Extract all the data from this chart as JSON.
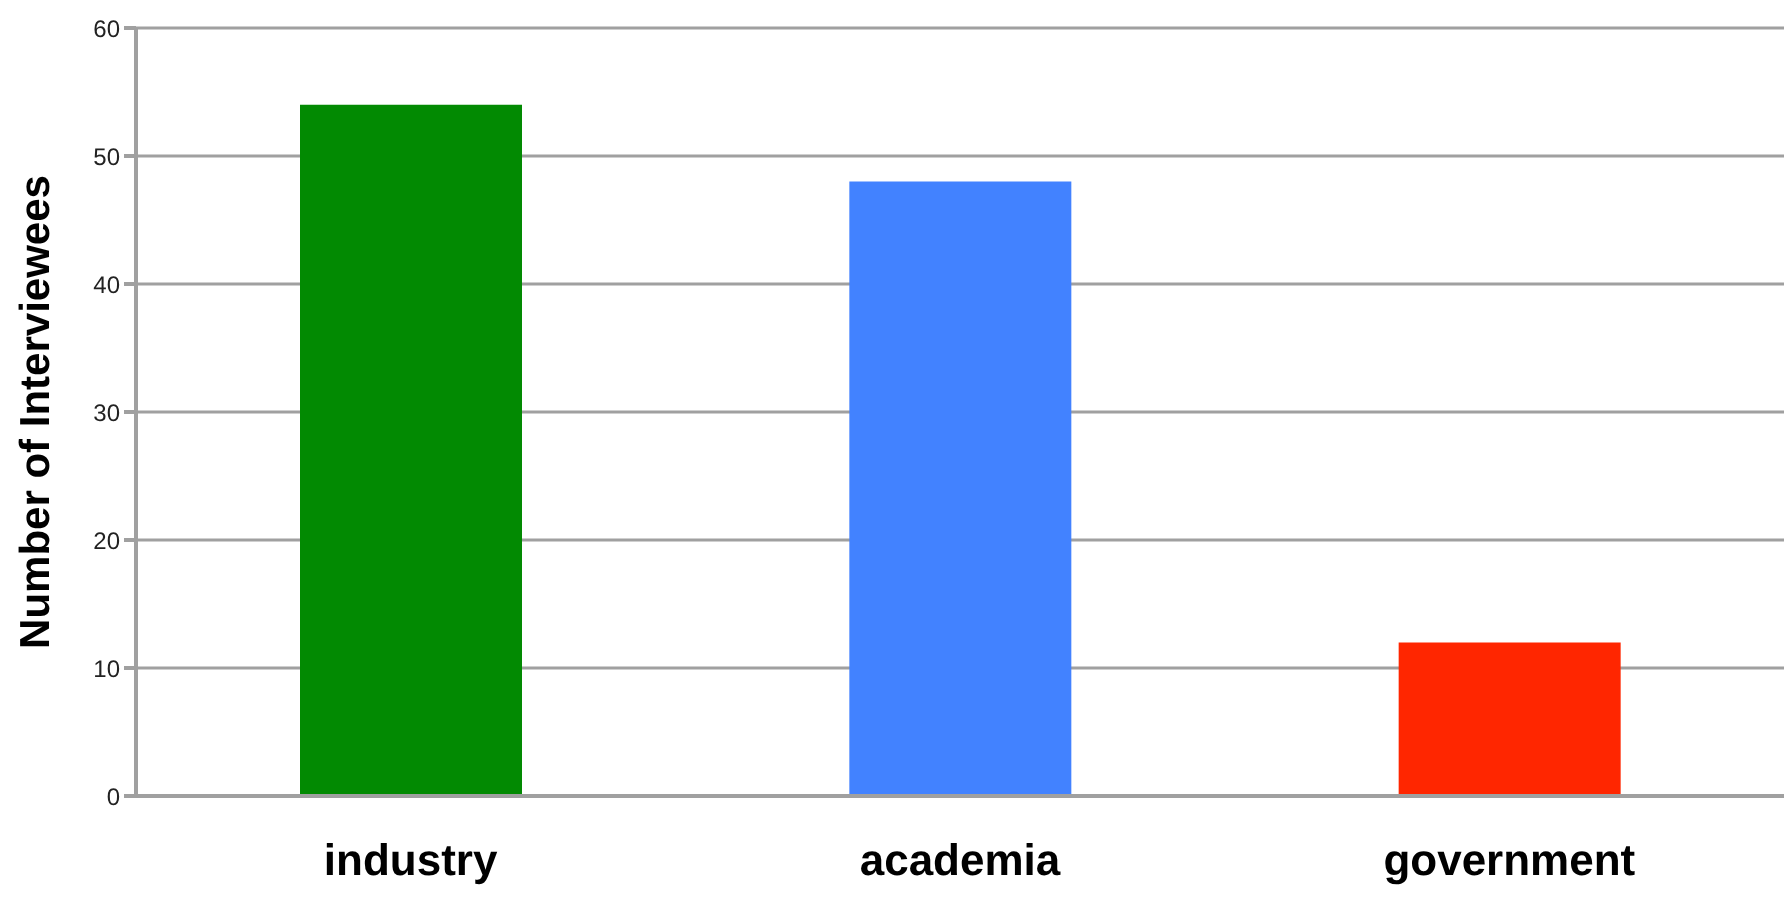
{
  "chart_data": {
    "type": "bar",
    "ylabel": "Number of Interviewees",
    "categories": [
      "industry",
      "academia",
      "government"
    ],
    "values": [
      54,
      48,
      12
    ],
    "colors": [
      "#028a02",
      "#4282ff",
      "#ff2600"
    ],
    "ylim": [
      0,
      60
    ],
    "yticks": [
      0,
      10,
      20,
      30,
      40,
      50,
      60
    ],
    "grid": "y"
  }
}
